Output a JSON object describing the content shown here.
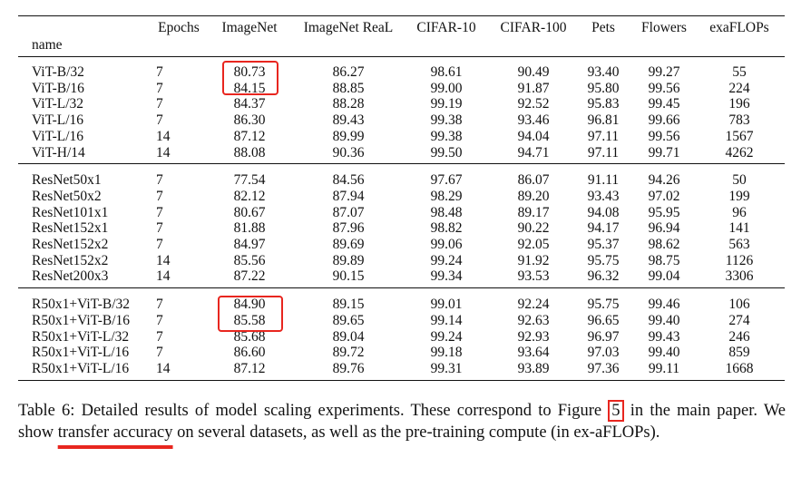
{
  "table": {
    "columns": [
      "name",
      "Epochs",
      "ImageNet",
      "ImageNet ReaL",
      "CIFAR-10",
      "CIFAR-100",
      "Pets",
      "Flowers",
      "exaFLOPs"
    ],
    "groups": [
      [
        [
          "ViT-B/32",
          "7",
          "80.73",
          "86.27",
          "98.61",
          "90.49",
          "93.40",
          "99.27",
          "55"
        ],
        [
          "ViT-B/16",
          "7",
          "84.15",
          "88.85",
          "99.00",
          "91.87",
          "95.80",
          "99.56",
          "224"
        ],
        [
          "ViT-L/32",
          "7",
          "84.37",
          "88.28",
          "99.19",
          "92.52",
          "95.83",
          "99.45",
          "196"
        ],
        [
          "ViT-L/16",
          "7",
          "86.30",
          "89.43",
          "99.38",
          "93.46",
          "96.81",
          "99.66",
          "783"
        ],
        [
          "ViT-L/16",
          "14",
          "87.12",
          "89.99",
          "99.38",
          "94.04",
          "97.11",
          "99.56",
          "1567"
        ],
        [
          "ViT-H/14",
          "14",
          "88.08",
          "90.36",
          "99.50",
          "94.71",
          "97.11",
          "99.71",
          "4262"
        ]
      ],
      [
        [
          "ResNet50x1",
          "7",
          "77.54",
          "84.56",
          "97.67",
          "86.07",
          "91.11",
          "94.26",
          "50"
        ],
        [
          "ResNet50x2",
          "7",
          "82.12",
          "87.94",
          "98.29",
          "89.20",
          "93.43",
          "97.02",
          "199"
        ],
        [
          "ResNet101x1",
          "7",
          "80.67",
          "87.07",
          "98.48",
          "89.17",
          "94.08",
          "95.95",
          "96"
        ],
        [
          "ResNet152x1",
          "7",
          "81.88",
          "87.96",
          "98.82",
          "90.22",
          "94.17",
          "96.94",
          "141"
        ],
        [
          "ResNet152x2",
          "7",
          "84.97",
          "89.69",
          "99.06",
          "92.05",
          "95.37",
          "98.62",
          "563"
        ],
        [
          "ResNet152x2",
          "14",
          "85.56",
          "89.89",
          "99.24",
          "91.92",
          "95.75",
          "98.75",
          "1126"
        ],
        [
          "ResNet200x3",
          "14",
          "87.22",
          "90.15",
          "99.34",
          "93.53",
          "96.32",
          "99.04",
          "3306"
        ]
      ],
      [
        [
          "R50x1+ViT-B/32",
          "7",
          "84.90",
          "89.15",
          "99.01",
          "92.24",
          "95.75",
          "99.46",
          "106"
        ],
        [
          "R50x1+ViT-B/16",
          "7",
          "85.58",
          "89.65",
          "99.14",
          "92.63",
          "96.65",
          "99.40",
          "274"
        ],
        [
          "R50x1+ViT-L/32",
          "7",
          "85.68",
          "89.04",
          "99.24",
          "92.93",
          "96.97",
          "99.43",
          "246"
        ],
        [
          "R50x1+ViT-L/16",
          "7",
          "86.60",
          "89.72",
          "99.18",
          "93.64",
          "97.03",
          "99.40",
          "859"
        ],
        [
          "R50x1+ViT-L/16",
          "14",
          "87.12",
          "89.76",
          "99.31",
          "93.89",
          "97.36",
          "99.11",
          "1668"
        ]
      ]
    ]
  },
  "caption": {
    "text1": "Table 6: Detailed results of model scaling experiments. These correspond to Figure",
    "figure_ref": "5",
    "text2": "in the main paper. We show",
    "highlight": "transfer accuracy",
    "text3": "on several datasets, as well as the pre-training compute (in ex-aFLOPs)."
  }
}
